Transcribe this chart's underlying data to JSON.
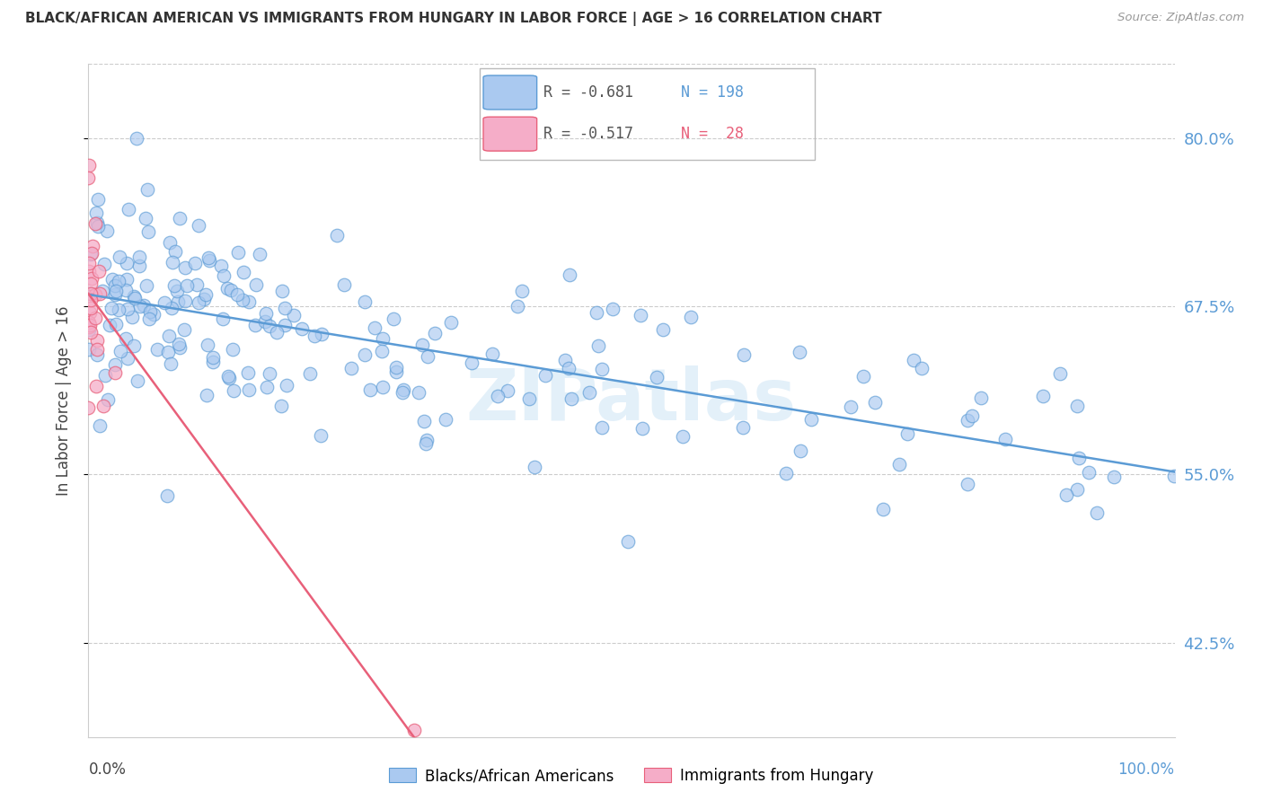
{
  "title": "BLACK/AFRICAN AMERICAN VS IMMIGRANTS FROM HUNGARY IN LABOR FORCE | AGE > 16 CORRELATION CHART",
  "source": "Source: ZipAtlas.com",
  "ylabel": "In Labor Force | Age > 16",
  "blue_R": "-0.681",
  "blue_N": "198",
  "pink_R": "-0.517",
  "pink_N": "28",
  "blue_color": "#aac9f0",
  "pink_color": "#f5adc8",
  "blue_line_color": "#5b9bd5",
  "pink_line_color": "#e8607a",
  "legend_blue_label": "Blacks/African Americans",
  "legend_pink_label": "Immigrants from Hungary",
  "bg_color": "#ffffff",
  "grid_color": "#cccccc",
  "title_color": "#333333",
  "right_tick_color": "#5b9bd5",
  "xmin": 0.0,
  "xmax": 1.0,
  "ymin": 0.355,
  "ymax": 0.855,
  "watermark": "ZIPatlas"
}
